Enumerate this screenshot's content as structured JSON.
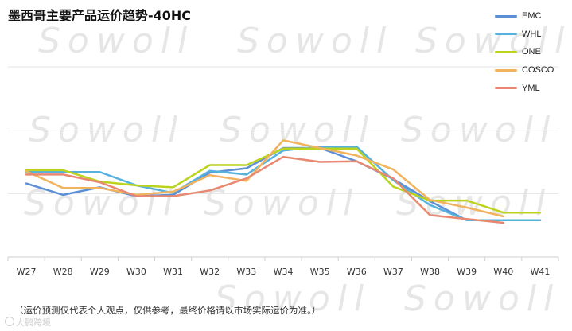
{
  "title": "墨西哥主要产品运价趋势-40HC",
  "footnote": "（运价预测仅代表个人观点，仅供参考，最终价格请以市场实际运价为准。）",
  "brand": "大鹏跨境",
  "watermark": "Sowoll",
  "chart_data": {
    "type": "line",
    "title": "墨西哥主要产品运价趋势-40HC",
    "xlabel": "",
    "ylabel": "",
    "categories": [
      "W27",
      "W28",
      "W29",
      "W30",
      "W31",
      "W32",
      "W33",
      "W34",
      "W35",
      "W36",
      "W37",
      "W38",
      "W39",
      "W40",
      "W41"
    ],
    "ylim": [
      0,
      300
    ],
    "y_gridlines": [
      0,
      100,
      200,
      300
    ],
    "y_tick_labels_shown": false,
    "legend": "top-right",
    "series": [
      {
        "name": "EMC",
        "color": "#5b8fd8",
        "values": [
          116,
          98,
          110,
          96,
          98,
          133,
          140,
          172,
          172,
          151,
          123,
          88,
          58,
          58,
          58
        ]
      },
      {
        "name": "WHL",
        "color": "#56b2dc",
        "values": [
          134,
          134,
          134,
          113,
          101,
          136,
          130,
          168,
          174,
          174,
          121,
          82,
          58,
          58,
          58
        ]
      },
      {
        "name": "ONE",
        "color": "#bcd31e",
        "values": [
          137,
          137,
          119,
          113,
          110,
          145,
          145,
          171,
          171,
          171,
          111,
          89,
          89,
          70,
          70
        ]
      },
      {
        "name": "COSCO",
        "color": "#f2b35e",
        "values": [
          135,
          109,
          109,
          98,
          103,
          129,
          120,
          184,
          172,
          160,
          138,
          90,
          78,
          64,
          null
        ]
      },
      {
        "name": "YML",
        "color": "#e88870",
        "values": [
          130,
          130,
          118,
          96,
          96,
          105,
          124,
          158,
          150,
          151,
          124,
          66,
          60,
          54,
          null
        ]
      }
    ]
  }
}
